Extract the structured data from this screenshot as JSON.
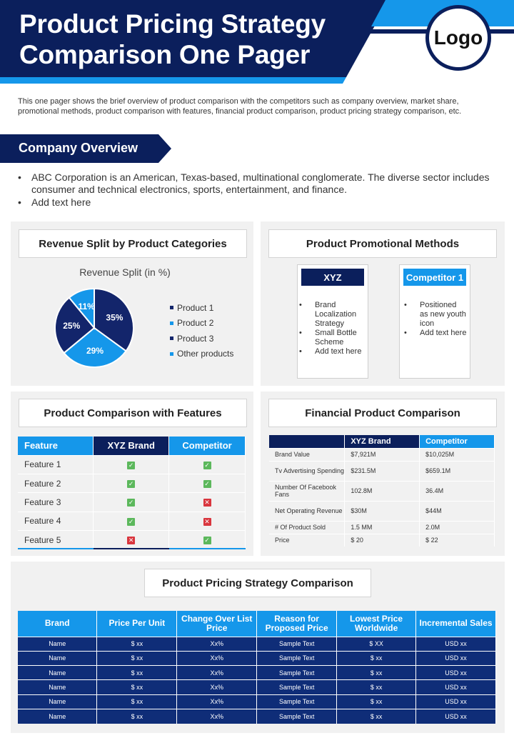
{
  "header": {
    "title_line1": "Product Pricing Strategy",
    "title_line2": "Comparison One Pager",
    "logo_text": "Logo"
  },
  "intro": "This one pager shows the brief overview of product comparison with the competitors such as company overview, market share, promotional methods, product comparison with features, financial product comparison, product pricing strategy comparison, etc.",
  "company_overview": {
    "heading": "Company Overview",
    "bullets": [
      "ABC Corporation is an American, Texas-based, multinational conglomerate. The diverse sector includes consumer and technical electronics, sports, entertainment, and finance.",
      "Add text here"
    ]
  },
  "colors": {
    "navy": "#0b1f5c",
    "blue": "#1597ea",
    "dark_blue": "#13256b",
    "green": "#5cb85c",
    "red": "#d9363e"
  },
  "revenue": {
    "heading": "Revenue Split by Product Categories",
    "caption": "Revenue Split (in %)",
    "legend": [
      "Product 1",
      "Product 2",
      "Product 3",
      "Other products"
    ]
  },
  "chart_data": {
    "type": "pie",
    "title": "Revenue Split (in %)",
    "categories": [
      "Product 1",
      "Product 2",
      "Product 3",
      "Other products"
    ],
    "values": [
      35,
      29,
      25,
      11
    ],
    "labels": [
      "35%",
      "29%",
      "25%",
      "11%"
    ],
    "colors": [
      "#13256b",
      "#1597ea",
      "#13256b",
      "#1597ea"
    ],
    "legend_position": "right"
  },
  "promo": {
    "heading": "Product Promotional Methods",
    "cards": [
      {
        "title": "XYZ",
        "items": [
          "Brand Localization Strategy",
          "Small Bottle Scheme",
          "Add text here"
        ]
      },
      {
        "title": "Competitor 1",
        "items": [
          "Positioned as new youth icon",
          "Add text here"
        ]
      }
    ]
  },
  "features": {
    "heading": "Product Comparison with Features",
    "columns": [
      "Feature",
      "XYZ Brand",
      "Competitor"
    ],
    "rows": [
      {
        "label": "Feature 1",
        "xyz": "check",
        "comp": "check"
      },
      {
        "label": "Feature 2",
        "xyz": "check",
        "comp": "check"
      },
      {
        "label": "Feature 3",
        "xyz": "check",
        "comp": "cross"
      },
      {
        "label": "Feature 4",
        "xyz": "check",
        "comp": "cross"
      },
      {
        "label": "Feature 5",
        "xyz": "cross",
        "comp": "check"
      }
    ]
  },
  "financial": {
    "heading": "Financial Product Comparison",
    "columns": [
      "",
      "XYZ Brand",
      "Competitor"
    ],
    "rows": [
      [
        "Brand Value",
        "$7,921M",
        "$10,025M"
      ],
      [
        "Tv Advertising Spending",
        "$231.5M",
        "$659.1M"
      ],
      [
        "Number Of Facebook Fans",
        "102.8M",
        "36.4M"
      ],
      [
        "Net Operating Revenue",
        "$30M",
        "$44M"
      ],
      [
        "# Of Product Sold",
        "1.5 MM",
        "2.0M"
      ],
      [
        "Price",
        "$ 20",
        "$ 22"
      ]
    ]
  },
  "pricing": {
    "heading": "Product Pricing Strategy Comparison",
    "columns": [
      "Brand",
      "Price Per Unit",
      "Change Over List Price",
      "Reason for Proposed Price",
      "Lowest Price Worldwide",
      "Incremental Sales"
    ],
    "rows": [
      [
        "Name",
        "$ xx",
        "Xx%",
        "Sample Text",
        "$ XX",
        "USD xx"
      ],
      [
        "Name",
        "$ xx",
        "Xx%",
        "Sample Text",
        "$ xx",
        "USD xx"
      ],
      [
        "Name",
        "$ xx",
        "Xx%",
        "Sample Text",
        "$ xx",
        "USD xx"
      ],
      [
        "Name",
        "$ xx",
        "Xx%",
        "Sample Text",
        "$ xx",
        "USD xx"
      ],
      [
        "Name",
        "$ xx",
        "Xx%",
        "Sample Text",
        "$ xx",
        "USD xx"
      ],
      [
        "Name",
        "$ xx",
        "Xx%",
        "Sample Text",
        "$ xx",
        "USD xx"
      ]
    ]
  }
}
